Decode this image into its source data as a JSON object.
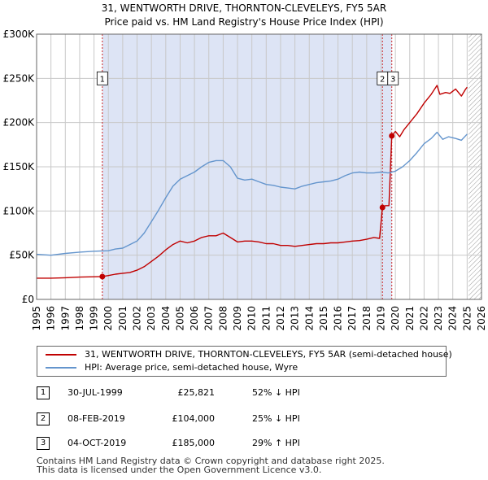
{
  "chart_data": {
    "type": "line",
    "title": "31, WENTWORTH DRIVE, THORNTON-CLEVELEYS, FY5 5AR",
    "subtitle": "Price paid vs. HM Land Registry's House Price Index (HPI)",
    "xlim": [
      1995,
      2026
    ],
    "ylim": [
      0,
      300000
    ],
    "y_ticks": [
      0,
      50000,
      100000,
      150000,
      200000,
      250000,
      300000
    ],
    "y_tick_labels": [
      "£0",
      "£50K",
      "£100K",
      "£150K",
      "£200K",
      "£250K",
      "£300K"
    ],
    "x_ticks": [
      1995,
      1996,
      1997,
      1998,
      1999,
      2000,
      2001,
      2002,
      2003,
      2004,
      2005,
      2006,
      2007,
      2008,
      2009,
      2010,
      2011,
      2012,
      2013,
      2014,
      2015,
      2016,
      2017,
      2018,
      2019,
      2020,
      2021,
      2022,
      2023,
      2024,
      2025,
      2026
    ],
    "x_tick_labels": [
      "1995",
      "1996",
      "1997",
      "1998",
      "1999",
      "2000",
      "2001",
      "2002",
      "2003",
      "2004",
      "2005",
      "2006",
      "2007",
      "2008",
      "2009",
      "2010",
      "2011",
      "2012",
      "2013",
      "2014",
      "2015",
      "2016",
      "2017",
      "2018",
      "2019",
      "2020",
      "2021",
      "2022",
      "2023",
      "2024",
      "2025",
      "2026"
    ],
    "colors": {
      "property": "#c00000",
      "hpi": "#6495cd",
      "shade": "#dde4f5",
      "grid": "#c8c8c8",
      "vline": "#cc2222",
      "future_hatch": "#999999"
    },
    "shaded_region": [
      1999.58,
      2019.75
    ],
    "future_from": 2025.1,
    "series": [
      {
        "name": "31, WENTWORTH DRIVE, THORNTON-CLEVELEYS, FY5 5AR (semi-detached house)",
        "key": "property",
        "points": [
          [
            1995.0,
            24000
          ],
          [
            1996.0,
            24000
          ],
          [
            1997.0,
            24500
          ],
          [
            1998.0,
            25200
          ],
          [
            1999.0,
            25600
          ],
          [
            1999.58,
            25821
          ],
          [
            2000.0,
            27000
          ],
          [
            2000.5,
            28500
          ],
          [
            2001.0,
            29500
          ],
          [
            2001.5,
            30500
          ],
          [
            2002.0,
            33000
          ],
          [
            2002.5,
            37000
          ],
          [
            2003.0,
            43000
          ],
          [
            2003.5,
            49000
          ],
          [
            2004.0,
            56000
          ],
          [
            2004.5,
            62000
          ],
          [
            2005.0,
            66000
          ],
          [
            2005.5,
            64000
          ],
          [
            2006.0,
            66000
          ],
          [
            2006.5,
            70000
          ],
          [
            2007.0,
            72000
          ],
          [
            2007.5,
            72000
          ],
          [
            2008.0,
            75000
          ],
          [
            2008.5,
            70000
          ],
          [
            2009.0,
            65000
          ],
          [
            2009.5,
            66000
          ],
          [
            2010.0,
            66000
          ],
          [
            2010.5,
            65000
          ],
          [
            2011.0,
            63000
          ],
          [
            2011.5,
            63000
          ],
          [
            2012.0,
            61000
          ],
          [
            2012.5,
            61000
          ],
          [
            2013.0,
            60000
          ],
          [
            2013.5,
            61000
          ],
          [
            2014.0,
            62000
          ],
          [
            2014.5,
            63000
          ],
          [
            2015.0,
            63000
          ],
          [
            2015.5,
            64000
          ],
          [
            2016.0,
            64000
          ],
          [
            2016.5,
            65000
          ],
          [
            2017.0,
            66000
          ],
          [
            2017.5,
            66500
          ],
          [
            2018.0,
            68000
          ],
          [
            2018.5,
            70000
          ],
          [
            2018.9,
            69000
          ],
          [
            2019.1,
            104000
          ],
          [
            2019.3,
            106000
          ],
          [
            2019.55,
            106000
          ],
          [
            2019.75,
            185000
          ],
          [
            2020.0,
            190000
          ],
          [
            2020.3,
            184000
          ],
          [
            2020.6,
            192000
          ],
          [
            2021.0,
            200000
          ],
          [
            2021.5,
            210000
          ],
          [
            2022.0,
            222000
          ],
          [
            2022.5,
            232000
          ],
          [
            2022.9,
            242000
          ],
          [
            2023.1,
            232000
          ],
          [
            2023.5,
            234000
          ],
          [
            2023.8,
            233000
          ],
          [
            2024.2,
            238000
          ],
          [
            2024.6,
            230000
          ],
          [
            2024.9,
            238000
          ],
          [
            2025.0,
            240000
          ]
        ]
      },
      {
        "name": "HPI: Average price, semi-detached house, Wyre",
        "key": "hpi",
        "points": [
          [
            1995.0,
            51000
          ],
          [
            1996.0,
            50000
          ],
          [
            1997.0,
            52000
          ],
          [
            1998.0,
            53500
          ],
          [
            1999.0,
            54500
          ],
          [
            2000.0,
            55000
          ],
          [
            2000.5,
            57000
          ],
          [
            2001.0,
            58000
          ],
          [
            2001.5,
            62000
          ],
          [
            2002.0,
            66000
          ],
          [
            2002.5,
            75000
          ],
          [
            2003.0,
            88000
          ],
          [
            2003.5,
            101000
          ],
          [
            2004.0,
            115000
          ],
          [
            2004.5,
            128000
          ],
          [
            2005.0,
            136000
          ],
          [
            2005.5,
            140000
          ],
          [
            2006.0,
            144000
          ],
          [
            2006.5,
            150000
          ],
          [
            2007.0,
            155000
          ],
          [
            2007.5,
            157000
          ],
          [
            2008.0,
            157000
          ],
          [
            2008.5,
            150000
          ],
          [
            2009.0,
            137000
          ],
          [
            2009.5,
            135000
          ],
          [
            2010.0,
            136000
          ],
          [
            2010.5,
            133000
          ],
          [
            2011.0,
            130000
          ],
          [
            2011.5,
            129000
          ],
          [
            2012.0,
            127000
          ],
          [
            2012.5,
            126000
          ],
          [
            2013.0,
            125000
          ],
          [
            2013.5,
            128000
          ],
          [
            2014.0,
            130000
          ],
          [
            2014.5,
            132000
          ],
          [
            2015.0,
            133000
          ],
          [
            2015.5,
            134000
          ],
          [
            2016.0,
            136000
          ],
          [
            2016.5,
            140000
          ],
          [
            2017.0,
            143000
          ],
          [
            2017.5,
            144000
          ],
          [
            2018.0,
            143000
          ],
          [
            2018.5,
            143000
          ],
          [
            2019.0,
            144000
          ],
          [
            2019.5,
            143000
          ],
          [
            2020.0,
            145000
          ],
          [
            2020.5,
            150000
          ],
          [
            2021.0,
            157000
          ],
          [
            2021.5,
            166000
          ],
          [
            2022.0,
            176000
          ],
          [
            2022.5,
            182000
          ],
          [
            2022.9,
            189000
          ],
          [
            2023.3,
            181000
          ],
          [
            2023.7,
            184000
          ],
          [
            2024.2,
            182000
          ],
          [
            2024.6,
            180000
          ],
          [
            2025.0,
            187000
          ]
        ]
      }
    ],
    "sales": [
      {
        "id": "1",
        "x": 1999.58,
        "price": 25821
      },
      {
        "id": "2",
        "x": 2019.1,
        "price": 104000
      },
      {
        "id": "3",
        "x": 2019.75,
        "price": 185000
      }
    ],
    "markers": [
      {
        "label": "1",
        "x": 1999.58,
        "y": 250000
      },
      {
        "label": "2",
        "x": 2019.1,
        "y": 250000
      },
      {
        "label": "3",
        "x": 2019.75,
        "y": 250000
      }
    ]
  },
  "legend": {
    "property_label": "31, WENTWORTH DRIVE, THORNTON-CLEVELEYS, FY5 5AR (semi-detached house)",
    "hpi_label": "HPI: Average price, semi-detached house, Wyre"
  },
  "sales_table": [
    {
      "num": "1",
      "date": "30-JUL-1999",
      "price": "£25,821",
      "hpi": "52% ↓ HPI"
    },
    {
      "num": "2",
      "date": "08-FEB-2019",
      "price": "£104,000",
      "hpi": "25% ↓ HPI"
    },
    {
      "num": "3",
      "date": "04-OCT-2019",
      "price": "£185,000",
      "hpi": "29% ↑ HPI"
    }
  ],
  "footer": {
    "line1": "Contains HM Land Registry data © Crown copyright and database right 2025.",
    "line2": "This data is licensed under the Open Government Licence v3.0."
  }
}
